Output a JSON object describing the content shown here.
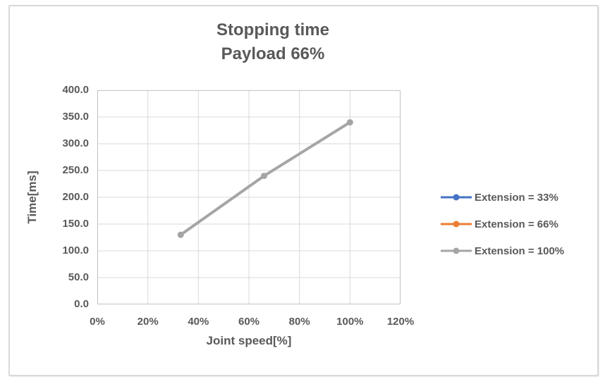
{
  "title": {
    "line1": "Stopping time",
    "line2": "Payload 66%"
  },
  "axes": {
    "x_title": "Joint speed[%]",
    "y_title": "Time[ms]"
  },
  "colors": {
    "text": "#595959",
    "gridline": "#d9d9d9",
    "plot_border": "#c3c3c3",
    "chart_border": "#d9d9d9",
    "series_blue": "#4472C4",
    "series_orange": "#ED7D31",
    "series_gray": "#A5A5A5"
  },
  "chart_data": {
    "type": "line",
    "title": "Stopping time Payload 66%",
    "xlabel": "Joint speed[%]",
    "ylabel": "Time[ms]",
    "xlim": [
      0,
      120
    ],
    "ylim": [
      0,
      400
    ],
    "x_tick_values": [
      0,
      20,
      40,
      60,
      80,
      100,
      120
    ],
    "x_tick_labels": [
      "0%",
      "20%",
      "40%",
      "60%",
      "80%",
      "100%",
      "120%"
    ],
    "y_tick_values": [
      0,
      50,
      100,
      150,
      200,
      250,
      300,
      350,
      400
    ],
    "y_tick_labels": [
      "0.0",
      "50.0",
      "100.0",
      "150.0",
      "200.0",
      "250.0",
      "300.0",
      "350.0",
      "400.0"
    ],
    "grid": true,
    "legend_position": "right-center",
    "marker": "circle",
    "series": [
      {
        "name": "Extension = 33%",
        "color": "#4472C4",
        "x": [],
        "y": [],
        "note": "line not visible in plot (overlapped by gray series)"
      },
      {
        "name": "Extension = 66%",
        "color": "#ED7D31",
        "x": [],
        "y": [],
        "note": "line not visible in plot (overlapped by gray series)"
      },
      {
        "name": "Extension = 100%",
        "color": "#A5A5A5",
        "x": [
          33,
          66,
          100
        ],
        "y": [
          130,
          240,
          340
        ]
      }
    ]
  }
}
